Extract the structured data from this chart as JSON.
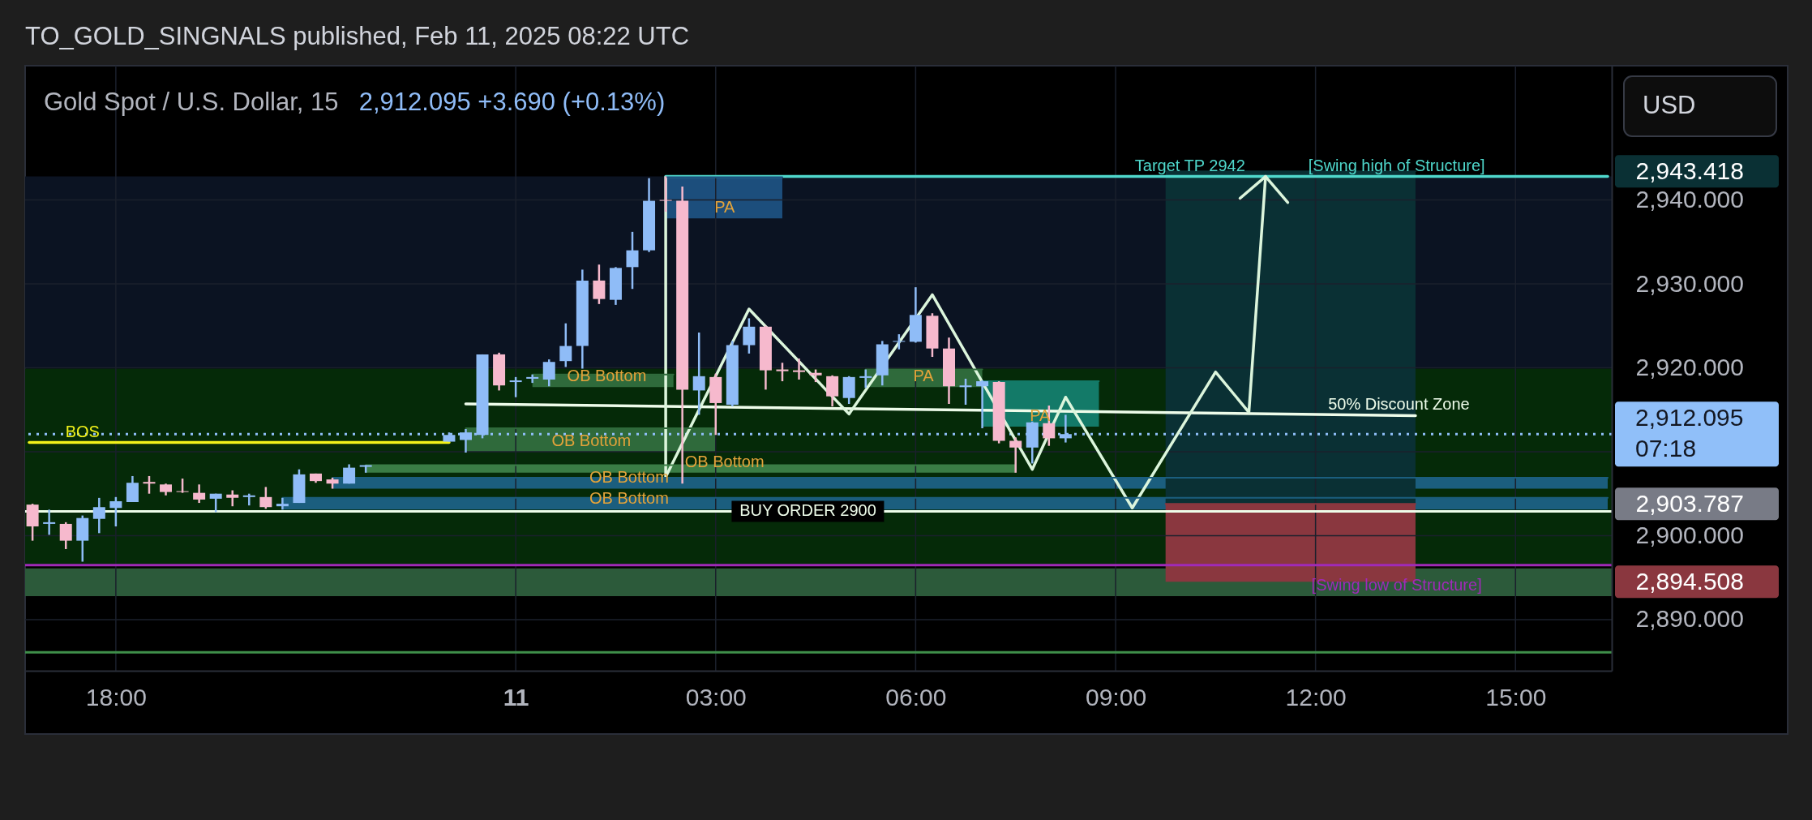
{
  "chart_data": {
    "type": "candlestick",
    "title": "TO_GOLD_SINGNALS published, Feb 11, 2025 08:22 UTC",
    "subtitle": "Gold Spot / U.S. Dollar, 15",
    "ylabel": "USD",
    "x": [
      "2025-02-10T16:45",
      "2025-02-10T17:00",
      "2025-02-10T17:15",
      "2025-02-10T17:30",
      "2025-02-10T17:45",
      "2025-02-10T18:00",
      "2025-02-10T18:15",
      "2025-02-10T18:30",
      "2025-02-10T18:45",
      "2025-02-10T19:00",
      "2025-02-10T19:15",
      "2025-02-10T19:30",
      "2025-02-10T19:45",
      "2025-02-10T20:00",
      "2025-02-10T20:15",
      "2025-02-10T20:30",
      "2025-02-10T20:45",
      "2025-02-10T21:00",
      "2025-02-10T21:15",
      "2025-02-10T21:30",
      "2025-02-10T21:45",
      "2025-02-10T23:00",
      "2025-02-10T23:15",
      "2025-02-10T23:30",
      "2025-02-10T23:45",
      "2025-02-11T00:00",
      "2025-02-11T00:15",
      "2025-02-11T00:30",
      "2025-02-11T00:45",
      "2025-02-11T01:00",
      "2025-02-11T01:15",
      "2025-02-11T01:30",
      "2025-02-11T01:45",
      "2025-02-11T02:00",
      "2025-02-11T02:15",
      "2025-02-11T02:30",
      "2025-02-11T02:45",
      "2025-02-11T03:00",
      "2025-02-11T03:15",
      "2025-02-11T03:30",
      "2025-02-11T03:45",
      "2025-02-11T04:00",
      "2025-02-11T04:15",
      "2025-02-11T04:30",
      "2025-02-11T04:45",
      "2025-02-11T05:00",
      "2025-02-11T05:15",
      "2025-02-11T05:30",
      "2025-02-11T05:45",
      "2025-02-11T06:00",
      "2025-02-11T06:15",
      "2025-02-11T06:30",
      "2025-02-11T06:45",
      "2025-02-11T07:00",
      "2025-02-11T07:15",
      "2025-02-11T07:30",
      "2025-02-11T07:45",
      "2025-02-11T08:00",
      "2025-02-11T08:15"
    ],
    "ohlc": [
      [
        2903.7,
        2903.8,
        2899.4,
        2901.1
      ],
      [
        2901.4,
        2903.1,
        2900.1,
        2901.6
      ],
      [
        2901.4,
        2901.6,
        2898.4,
        2899.4
      ],
      [
        2899.4,
        2902.4,
        2896.9,
        2902.1
      ],
      [
        2902.0,
        2904.5,
        2900.3,
        2903.4
      ],
      [
        2903.3,
        2904.6,
        2901.1,
        2904.1
      ],
      [
        2904.0,
        2907.1,
        2904.0,
        2906.3
      ],
      [
        2906.4,
        2907.1,
        2905.0,
        2906.2
      ],
      [
        2906.1,
        2906.2,
        2904.8,
        2905.2
      ],
      [
        2905.3,
        2906.8,
        2905.1,
        2905.2
      ],
      [
        2905.1,
        2906.1,
        2903.9,
        2904.3
      ],
      [
        2904.4,
        2905.0,
        2902.8,
        2905.0
      ],
      [
        2904.9,
        2905.4,
        2903.5,
        2904.5
      ],
      [
        2904.6,
        2905.0,
        2903.6,
        2904.8
      ],
      [
        2904.6,
        2905.8,
        2903.2,
        2903.4
      ],
      [
        2903.5,
        2904.5,
        2903.1,
        2903.8
      ],
      [
        2903.9,
        2907.9,
        2903.9,
        2907.3
      ],
      [
        2907.4,
        2907.4,
        2906.3,
        2906.5
      ],
      [
        2906.7,
        2906.9,
        2905.6,
        2906.2
      ],
      [
        2906.2,
        2908.5,
        2906.2,
        2908.1
      ],
      [
        2908.2,
        2908.4,
        2907.5,
        2908.4
      ],
      [
        2911.2,
        2912.3,
        2911.2,
        2912.0
      ],
      [
        2911.4,
        2912.7,
        2909.9,
        2912.3
      ],
      [
        2912.0,
        2921.6,
        2911.6,
        2921.6
      ],
      [
        2921.6,
        2921.8,
        2917.3,
        2917.9
      ],
      [
        2918.3,
        2918.9,
        2916.5,
        2918.5
      ],
      [
        2918.7,
        2919.2,
        2918.2,
        2918.9
      ],
      [
        2918.6,
        2921.0,
        2917.8,
        2920.7
      ],
      [
        2920.8,
        2925.3,
        2920.1,
        2922.6
      ],
      [
        2922.6,
        2931.7,
        2919.9,
        2930.4
      ],
      [
        2930.4,
        2932.3,
        2927.6,
        2928.2
      ],
      [
        2928.1,
        2932.0,
        2927.5,
        2931.9
      ],
      [
        2932.0,
        2936.2,
        2929.4,
        2934.0
      ],
      [
        2934.0,
        2942.6,
        2933.8,
        2939.9
      ],
      [
        2940.0,
        2942.8,
        2938.6,
        2939.9
      ],
      [
        2939.9,
        2941.6,
        2906.2,
        2917.4
      ],
      [
        2917.3,
        2924.2,
        2914.4,
        2919.0
      ],
      [
        2918.9,
        2919.3,
        2912.0,
        2915.8
      ],
      [
        2915.6,
        2923.2,
        2915.4,
        2922.7
      ],
      [
        2922.7,
        2925.9,
        2921.7,
        2924.9
      ],
      [
        2924.9,
        2925.0,
        2917.4,
        2919.7
      ],
      [
        2919.8,
        2920.6,
        2918.4,
        2919.6
      ],
      [
        2919.7,
        2921.1,
        2918.6,
        2919.5
      ],
      [
        2919.4,
        2919.8,
        2918.3,
        2919.1
      ],
      [
        2919.0,
        2919.1,
        2915.4,
        2916.6
      ],
      [
        2916.4,
        2919.0,
        2915.7,
        2918.9
      ],
      [
        2918.8,
        2919.8,
        2917.6,
        2919.0
      ],
      [
        2919.1,
        2923.2,
        2917.9,
        2922.8
      ],
      [
        2923.1,
        2924.0,
        2922.2,
        2923.2
      ],
      [
        2923.1,
        2929.6,
        2923.0,
        2926.3
      ],
      [
        2926.2,
        2926.5,
        2921.3,
        2922.3
      ],
      [
        2922.3,
        2923.6,
        2915.7,
        2917.8
      ],
      [
        2917.7,
        2918.7,
        2915.6,
        2917.9
      ],
      [
        2917.8,
        2918.5,
        2912.8,
        2918.4
      ],
      [
        2918.3,
        2918.4,
        2911.0,
        2911.3
      ],
      [
        2911.3,
        2911.7,
        2907.5,
        2910.5
      ],
      [
        2910.5,
        2913.6,
        2908.6,
        2913.5
      ],
      [
        2913.4,
        2915.5,
        2910.7,
        2911.6
      ],
      [
        2911.6,
        2914.4,
        2911.1,
        2912.1
      ]
    ],
    "colors": [
      "#f6b9cd",
      "#8fbcf7",
      "#f6b9cd",
      "#8fbcf7",
      "#8fbcf7",
      "#8fbcf7",
      "#8fbcf7",
      "#f6b9cd",
      "#f6b9cd",
      "#f6b9cd",
      "#f6b9cd",
      "#8fbcf7",
      "#f6b9cd",
      "#8fbcf7",
      "#f6b9cd",
      "#8fbcf7",
      "#8fbcf7",
      "#f6b9cd",
      "#f6b9cd",
      "#8fbcf7",
      "#8fbcf7",
      "#8fbcf7",
      "#8fbcf7",
      "#8fbcf7",
      "#f6b9cd",
      "#8fbcf7",
      "#8fbcf7",
      "#8fbcf7",
      "#8fbcf7",
      "#8fbcf7",
      "#f6b9cd",
      "#8fbcf7",
      "#8fbcf7",
      "#8fbcf7",
      "#f6b9cd",
      "#f6b9cd",
      "#8fbcf7",
      "#f6b9cd",
      "#8fbcf7",
      "#8fbcf7",
      "#f6b9cd",
      "#f6b9cd",
      "#f6b9cd",
      "#f6b9cd",
      "#f6b9cd",
      "#8fbcf7",
      "#8fbcf7",
      "#8fbcf7",
      "#8fbcf7",
      "#8fbcf7",
      "#f6b9cd",
      "#f6b9cd",
      "#8fbcf7",
      "#8fbcf7",
      "#f6b9cd",
      "#f6b9cd",
      "#8fbcf7",
      "#f6b9cd",
      "#8fbcf7"
    ],
    "xlim": [
      "2025-02-10T16:42",
      "2025-02-11T16:23"
    ],
    "xticks": [
      {
        "value": "2025-02-10T18:00",
        "label": "18:00"
      },
      {
        "value": "2025-02-11T00:00",
        "label": "11"
      },
      {
        "value": "2025-02-11T03:00",
        "label": "03:00"
      },
      {
        "value": "2025-02-11T06:00",
        "label": "06:00"
      },
      {
        "value": "2025-02-11T09:00",
        "label": "09:00"
      },
      {
        "value": "2025-02-11T12:00",
        "label": "12:00"
      },
      {
        "value": "2025-02-11T15:00",
        "label": "15:00"
      }
    ],
    "ylim": [
      2883.9,
      2956.0
    ],
    "yticks": [
      {
        "value": 2890,
        "label": "2,890.000"
      },
      {
        "value": 2894.508,
        "label": "2,894.508"
      },
      {
        "value": 2900,
        "label": "2,900.000"
      },
      {
        "value": 2903.787,
        "label": "2,903.787"
      },
      {
        "value": 2910,
        "label": null
      },
      {
        "value": 2920,
        "label": "2,920.000"
      },
      {
        "value": 2930,
        "label": "2,930.000"
      },
      {
        "value": 2940,
        "label": "2,940.000"
      },
      {
        "value": 2943.418,
        "label": "2,943.418"
      }
    ],
    "grid": true,
    "bands": [
      {
        "axis": "y",
        "from": 2919.9,
        "to": 2942.8,
        "color": "#0b1322"
      },
      {
        "axis": "y",
        "from": 2896.5,
        "to": 2919.9,
        "color": "#052a08"
      },
      {
        "axis": "y",
        "from": 2892.8,
        "to": 2896.1,
        "color": "#2c5a3a"
      }
    ],
    "series": [
      {
        "type": "line",
        "x": [
          "2025-02-10T21:15",
          "2025-02-11T16:23"
        ],
        "values": [
          2906.9,
          2906.9
        ],
        "lower": [
          2905.6,
          2905.6
        ],
        "upper": [
          2906.9,
          2906.9
        ],
        "color": "#1b5e7e"
      },
      {
        "type": "line",
        "x": [
          "2025-02-10T20:30",
          "2025-02-11T16:23"
        ],
        "values": [
          2904.5,
          2904.5
        ],
        "lower": [
          2903.1,
          2903.1
        ],
        "upper": [
          2904.5,
          2904.5
        ],
        "color": "#1b5e7e"
      },
      {
        "type": "line",
        "x": [
          "2025-02-10T21:45",
          "2025-02-11T07:30"
        ],
        "values": [
          2908.4,
          2908.4
        ],
        "lower": [
          2907.5,
          2907.5
        ],
        "upper": [
          2908.4,
          2908.4
        ],
        "color": "#3a7d45"
      },
      {
        "type": "line",
        "x": [
          "2025-02-10T23:15",
          "2025-02-11T03:00"
        ],
        "values": [
          2912.8,
          2912.8
        ],
        "lower": [
          2910.0,
          2910.0
        ],
        "upper": [
          2912.8,
          2912.8
        ],
        "color": "#2f6a3b"
      },
      {
        "type": "line",
        "x": [
          "2025-02-11T00:15",
          "2025-02-11T02:22"
        ],
        "values": [
          2919.2,
          2919.2
        ],
        "lower": [
          2917.7,
          2917.7
        ],
        "upper": [
          2919.2,
          2919.2
        ],
        "color": "#2f6a3b"
      },
      {
        "type": "line",
        "x": [
          "2025-02-11T02:15",
          "2025-02-11T04:00"
        ],
        "values": [
          2942.7,
          2942.7
        ],
        "lower": [
          2937.8,
          2937.8
        ],
        "upper": [
          2942.7,
          2942.7
        ],
        "color": "#1c4e7c"
      },
      {
        "type": "line",
        "x": [
          "2025-02-11T05:15",
          "2025-02-11T07:00"
        ],
        "values": [
          2919.8,
          2919.8
        ],
        "lower": [
          2917.7,
          2917.7
        ],
        "upper": [
          2919.8,
          2919.8
        ],
        "color": "#2f6a3b"
      },
      {
        "type": "line",
        "x": [
          "2025-02-11T07:00",
          "2025-02-11T08:45"
        ],
        "values": [
          2918.4,
          2918.4
        ],
        "lower": [
          2913.0,
          2913.0
        ],
        "upper": [
          2918.4,
          2918.4
        ],
        "color": "#137a68"
      },
      {
        "type": "line",
        "x": [
          "2025-02-11T09:45",
          "2025-02-11T13:30"
        ],
        "values": [
          2943.418,
          2943.418
        ],
        "lower": [
          2903.787,
          2903.787
        ],
        "upper": [
          2943.418,
          2943.418
        ],
        "color": "#0a3034"
      },
      {
        "type": "line",
        "x": [
          "2025-02-11T09:45",
          "2025-02-11T13:30"
        ],
        "values": [
          2903.787,
          2903.787
        ],
        "lower": [
          2894.508,
          2894.508
        ],
        "upper": [
          2903.787,
          2903.787
        ],
        "color": "#8a373f"
      },
      {
        "type": "line",
        "x": [
          "2025-02-10T16:42",
          "2025-02-10T23:00"
        ],
        "values": [
          2911.1,
          2911.1
        ],
        "color": "#f2f21a"
      },
      {
        "type": "line",
        "x": [
          "2025-02-11T02:15",
          "2025-02-11T16:23"
        ],
        "values": [
          2942.8,
          2942.8
        ],
        "color": "#4fd8cc"
      },
      {
        "type": "line",
        "x": [
          "2025-02-10T23:15",
          "2025-02-11T13:30"
        ],
        "values": [
          2915.7,
          2914.3
        ],
        "color": "#eefcea"
      },
      {
        "type": "line",
        "x": [
          "2025-02-11T02:15",
          "2025-02-11T02:15",
          "2025-02-11T03:30",
          "2025-02-11T05:00",
          "2025-02-11T06:15",
          "2025-02-11T07:45",
          "2025-02-11T08:15",
          "2025-02-11T09:15",
          "2025-02-11T10:30",
          "2025-02-11T11:00",
          "2025-02-11T11:15"
        ],
        "values": [
          2942.7,
          2907.0,
          2927.0,
          2914.5,
          2928.7,
          2907.9,
          2916.5,
          2903.3,
          2919.5,
          2914.7,
          2942.8
        ],
        "color": "#dcf5dc"
      },
      {
        "type": "line",
        "x": [
          "2025-02-11T10:52",
          "2025-02-11T11:15",
          "2025-02-11T11:35"
        ],
        "values": [
          2940.2,
          2942.8,
          2939.7
        ],
        "color": "#dcf5dc"
      }
    ],
    "ref_lines": [
      {
        "axis": "y",
        "value": 2896.5,
        "color": "#a02ab8"
      },
      {
        "axis": "y",
        "value": 2886.1,
        "color": "#3f8f4a"
      },
      {
        "axis": "y",
        "value": 2902.9,
        "color": "#eefdea"
      },
      {
        "axis": "y",
        "value": 2912.095,
        "label": "2,912.095\n07:18",
        "color": "#90bff9",
        "line_style": "dotted"
      }
    ],
    "annotations": [
      {
        "text": "BOS",
        "x": "2025-02-10T17:30",
        "y": 2911.1
      },
      {
        "text": "OB Bottom",
        "x": "2025-02-11T01:22",
        "y": 2917.7
      },
      {
        "text": "OB Bottom",
        "x": "2025-02-11T01:08",
        "y": 2910.0
      },
      {
        "text": "OB Bottom",
        "x": "2025-02-11T03:08",
        "y": 2907.5
      },
      {
        "text": "OB Bottom",
        "x": "2025-02-11T01:42",
        "y": 2905.6
      },
      {
        "text": "OB Bottom",
        "x": "2025-02-11T01:42",
        "y": 2903.1
      },
      {
        "text": "PA",
        "x": "2025-02-11T03:08",
        "y": 2937.8
      },
      {
        "text": "PA",
        "x": "2025-02-11T06:07",
        "y": 2917.7
      },
      {
        "text": "PA",
        "x": "2025-02-11T07:52",
        "y": 2913.0
      },
      {
        "text": "BUY ORDER 2900",
        "x": "2025-02-11T04:23",
        "y": 2902.9
      },
      {
        "text": "Target TP 2942",
        "x": "2025-02-11T10:07",
        "y": 2942.8
      },
      {
        "text": "[Swing high of Structure]",
        "x": "2025-02-11T13:13",
        "y": 2942.8
      },
      {
        "text": "50% Discount Zone",
        "x": "2025-02-11T13:15",
        "y": 2914.3
      },
      {
        "text": "[Swing low of Structure]",
        "x": "2025-02-11T13:13",
        "y": 2892.8
      },
      "2,912.095  +3.690 (+0.13%)"
    ]
  }
}
